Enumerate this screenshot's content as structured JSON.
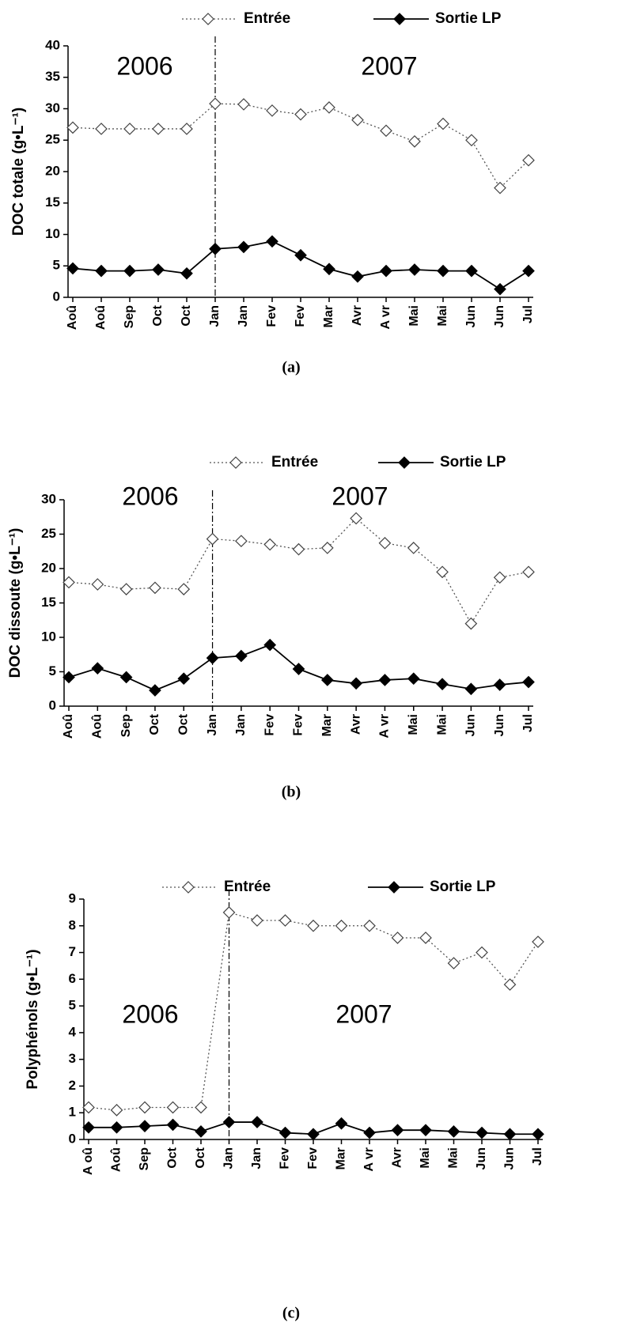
{
  "chart_data": [
    {
      "type": "line",
      "title": "(a)",
      "ylabel": "DOC totale  (g•L⁻¹)",
      "annotations": [
        "2006",
        "2007"
      ],
      "categories": [
        "Aoû",
        "Aoû",
        "Sep",
        "Oct",
        "Oct",
        "Jan",
        "Jan",
        "Fev",
        "Fev",
        "Mar",
        "Avr",
        "A vr",
        "Mai",
        "Mai",
        "Jun",
        "Jun",
        "Jul"
      ],
      "series": [
        {
          "name": "Entrée",
          "color": "#555555",
          "values": [
            27,
            26.8,
            26.8,
            26.8,
            26.8,
            30.8,
            30.7,
            29.7,
            29.1,
            30.2,
            28.2,
            26.5,
            24.8,
            27.6,
            25,
            17.4,
            21.8
          ]
        },
        {
          "name": "Sortie LP",
          "color": "#000000",
          "values": [
            4.6,
            4.2,
            4.2,
            4.4,
            3.8,
            7.7,
            8,
            8.9,
            6.7,
            4.5,
            3.3,
            4.2,
            4.4,
            4.2,
            4.2,
            1.3,
            4.2
          ]
        }
      ],
      "ylim": [
        0,
        40
      ],
      "yticks": [
        0,
        5,
        10,
        15,
        20,
        25,
        30,
        35,
        40
      ]
    },
    {
      "type": "line",
      "title": "(b)",
      "ylabel": "DOC dissoute (g•L⁻¹)",
      "annotations": [
        "2006",
        "2007"
      ],
      "categories": [
        "Aoû",
        "Aoû",
        "Sep",
        "Oct",
        "Oct",
        "Jan",
        "Jan",
        "Fev",
        "Fev",
        "Mar",
        "Avr",
        "A vr",
        "Mai",
        "Mai",
        "Jun",
        "Jun",
        "Jul"
      ],
      "series": [
        {
          "name": "Entrée",
          "color": "#555555",
          "values": [
            18,
            17.7,
            17,
            17.2,
            17,
            24.3,
            24,
            23.5,
            22.8,
            23,
            27.3,
            23.7,
            23,
            19.5,
            12,
            18.7,
            19.5
          ]
        },
        {
          "name": "Sortie LP",
          "color": "#000000",
          "values": [
            4.2,
            5.5,
            4.2,
            2.3,
            4,
            7,
            7.3,
            8.9,
            5.4,
            3.8,
            3.3,
            3.8,
            4,
            3.2,
            2.5,
            3.1,
            3.5
          ]
        }
      ],
      "ylim": [
        0,
        30
      ],
      "yticks": [
        0,
        5,
        10,
        15,
        20,
        25,
        30
      ]
    },
    {
      "type": "line",
      "title": "(c)",
      "ylabel": "Polyphénols (g•L⁻¹)",
      "annotations": [
        "2006",
        "2007"
      ],
      "categories": [
        "A oû",
        "Aoû",
        "Sep",
        "Oct",
        "Oct",
        "Jan",
        "Jan",
        "Fev",
        "Fev",
        "Mar",
        "A vr",
        "Avr",
        "Mai",
        "Mai",
        "Jun",
        "Jun",
        "Jul"
      ],
      "series": [
        {
          "name": "Entrée",
          "color": "#555555",
          "values": [
            1.2,
            1.1,
            1.2,
            1.2,
            1.2,
            8.5,
            8.2,
            8.2,
            8,
            8,
            8,
            7.55,
            7.55,
            6.6,
            7,
            5.8,
            7.4
          ]
        },
        {
          "name": "Sortie LP",
          "color": "#000000",
          "values": [
            0.45,
            0.45,
            0.5,
            0.55,
            0.3,
            0.65,
            0.65,
            0.25,
            0.2,
            0.6,
            0.25,
            0.35,
            0.35,
            0.3,
            0.25,
            0.2,
            0.2
          ]
        }
      ],
      "ylim": [
        0,
        9
      ],
      "yticks": [
        0,
        1,
        2,
        3,
        4,
        5,
        6,
        7,
        8,
        9
      ]
    }
  ]
}
